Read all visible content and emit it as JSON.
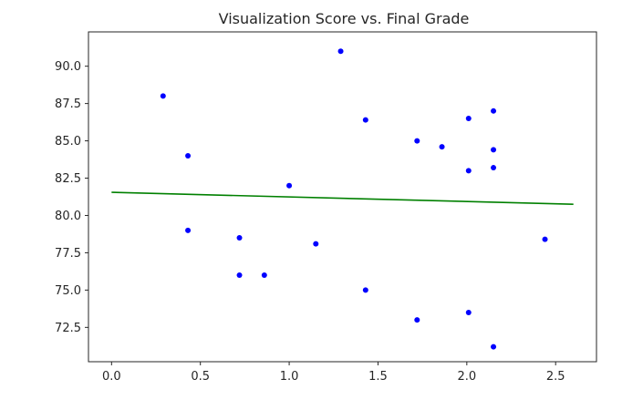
{
  "chart_data": {
    "type": "scatter",
    "title": "Visualization Score vs. Final Grade",
    "xlabel": "",
    "ylabel": "",
    "xlim": [
      -0.13,
      2.73
    ],
    "ylim": [
      70.2,
      92.3
    ],
    "xticks": [
      0.0,
      0.5,
      1.0,
      1.5,
      2.0,
      2.5
    ],
    "xtick_labels": [
      "0.0",
      "0.5",
      "1.0",
      "1.5",
      "2.0",
      "2.5"
    ],
    "yticks": [
      72.5,
      75.0,
      77.5,
      80.0,
      82.5,
      85.0,
      87.5,
      90.0
    ],
    "ytick_labels": [
      "72.5",
      "75.0",
      "77.5",
      "80.0",
      "82.5",
      "85.0",
      "87.5",
      "90.0"
    ],
    "grid": false,
    "series": [
      {
        "kind": "scatter",
        "color": "#0000ff",
        "points": [
          {
            "x": 0.29,
            "y": 88.0
          },
          {
            "x": 0.43,
            "y": 84.0
          },
          {
            "x": 0.43,
            "y": 79.0
          },
          {
            "x": 0.72,
            "y": 78.5
          },
          {
            "x": 0.72,
            "y": 76.0
          },
          {
            "x": 0.86,
            "y": 76.0
          },
          {
            "x": 1.0,
            "y": 82.0
          },
          {
            "x": 1.15,
            "y": 78.1
          },
          {
            "x": 1.29,
            "y": 91.0
          },
          {
            "x": 1.43,
            "y": 86.4
          },
          {
            "x": 1.43,
            "y": 75.0
          },
          {
            "x": 1.72,
            "y": 85.0
          },
          {
            "x": 1.72,
            "y": 73.0
          },
          {
            "x": 1.86,
            "y": 84.6
          },
          {
            "x": 2.01,
            "y": 86.5
          },
          {
            "x": 2.01,
            "y": 83.0
          },
          {
            "x": 2.01,
            "y": 73.5
          },
          {
            "x": 2.15,
            "y": 87.0
          },
          {
            "x": 2.15,
            "y": 84.4
          },
          {
            "x": 2.15,
            "y": 83.2
          },
          {
            "x": 2.15,
            "y": 71.2
          },
          {
            "x": 2.44,
            "y": 78.4
          }
        ]
      },
      {
        "kind": "line",
        "color": "#008000",
        "points": [
          {
            "x": 0.0,
            "y": 81.55
          },
          {
            "x": 2.6,
            "y": 80.75
          }
        ]
      }
    ]
  }
}
